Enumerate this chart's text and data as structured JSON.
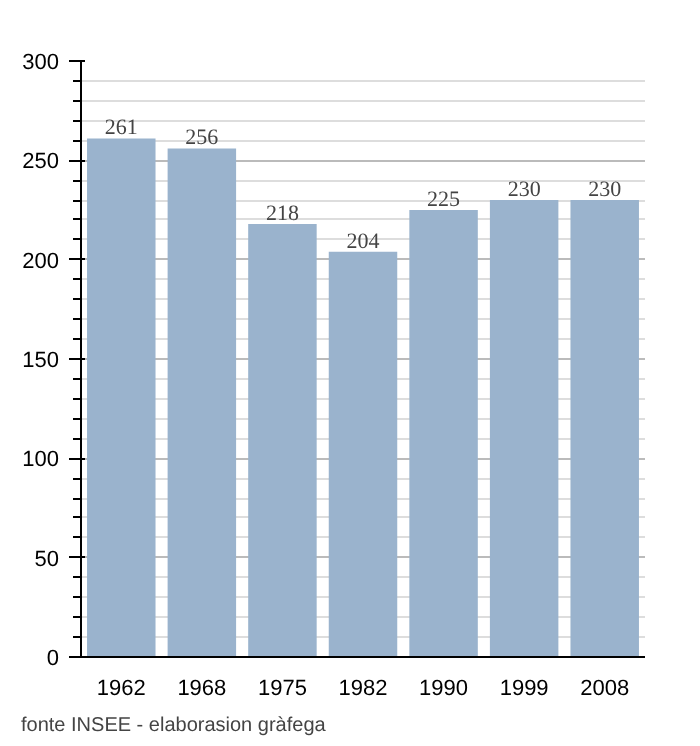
{
  "chart_data": {
    "type": "bar",
    "categories": [
      "1962",
      "1968",
      "1975",
      "1982",
      "1990",
      "1999",
      "2008"
    ],
    "values": [
      261,
      256,
      218,
      204,
      225,
      230,
      230
    ],
    "color": "#9ab3cd",
    "ylim": [
      0,
      300
    ],
    "yticks": [
      0,
      50,
      100,
      150,
      200,
      250,
      300
    ],
    "grid": "y",
    "data_labels": true,
    "annotations": [
      "fonte INSEE - elaborasion gràfega"
    ]
  }
}
